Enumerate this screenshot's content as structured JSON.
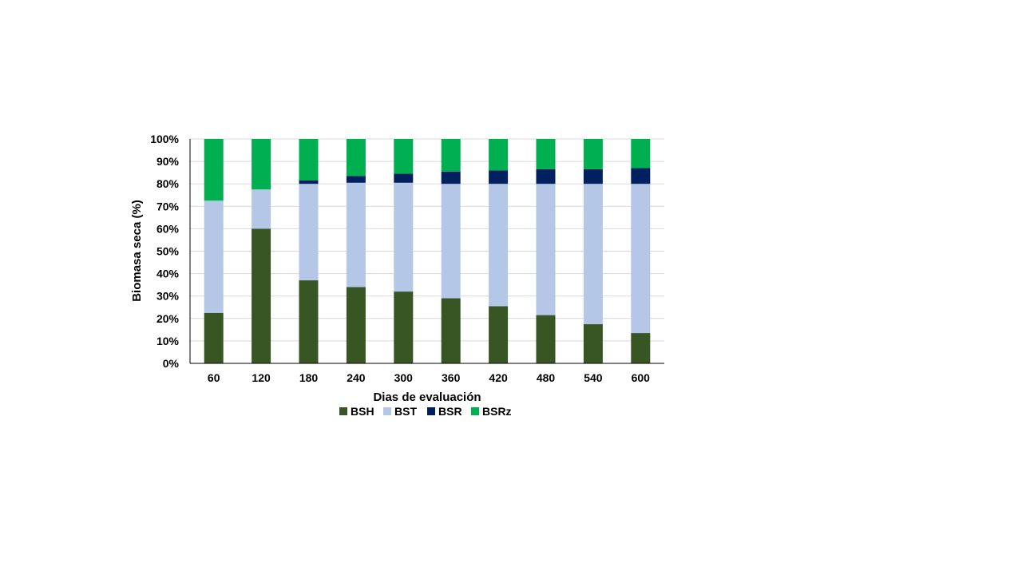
{
  "chart_data": {
    "type": "bar",
    "stacked": true,
    "percent": true,
    "title": "",
    "xlabel": "Dias de evaluación",
    "ylabel": "Biomasa seca (%)",
    "ylim": [
      0,
      100
    ],
    "yticks": [
      "0%",
      "10%",
      "20%",
      "30%",
      "40%",
      "50%",
      "60%",
      "70%",
      "80%",
      "90%",
      "100%"
    ],
    "grid": true,
    "legend_position": "bottom",
    "categories": [
      "60",
      "120",
      "180",
      "240",
      "300",
      "360",
      "420",
      "480",
      "540",
      "600"
    ],
    "series": [
      {
        "name": "BSH",
        "color": "#375623",
        "values": [
          22.5,
          60,
          37,
          34,
          32,
          29,
          25.5,
          21.5,
          17.5,
          13.5
        ]
      },
      {
        "name": "BST",
        "color": "#B4C7E7",
        "values": [
          50,
          17.5,
          43,
          46.5,
          48.5,
          51,
          54.5,
          58.5,
          62.5,
          66.5
        ]
      },
      {
        "name": "BSR",
        "color": "#002060",
        "values": [
          0,
          0,
          1.5,
          3,
          4,
          5.5,
          6,
          6.5,
          6.5,
          7
        ]
      },
      {
        "name": "BSRz",
        "color": "#00B050",
        "values": [
          27.5,
          22.5,
          18.5,
          16.5,
          15.5,
          14.5,
          14,
          13.5,
          13.5,
          13
        ]
      }
    ]
  }
}
